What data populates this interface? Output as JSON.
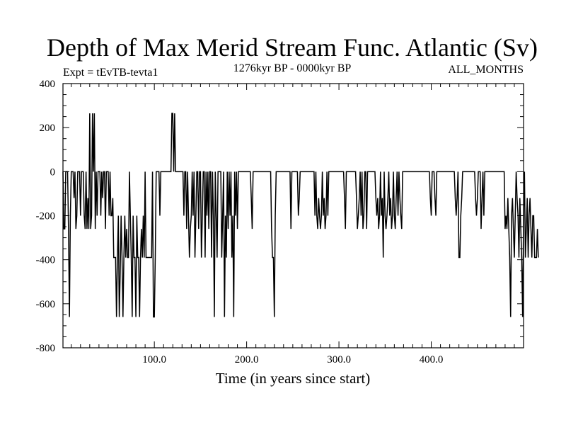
{
  "chart_data": {
    "type": "line",
    "title": "Depth of Max Merid Stream Func. Atlantic (Sv)",
    "subtitle_left": "Expt = tEvTB-tevta1",
    "subtitle_center": "1276kyr BP - 0000kyr BP",
    "subtitle_right": "ALL_MONTHS",
    "xlabel": "Time (in years since start)",
    "ylabel": "",
    "xlim": [
      1,
      500
    ],
    "ylim": [
      -800,
      400
    ],
    "x_ticks": [
      100,
      200,
      300,
      400
    ],
    "x_tick_labels": [
      "100.0",
      "200.0",
      "300.0",
      "400.0"
    ],
    "y_ticks": [
      -800,
      -600,
      -400,
      -200,
      0,
      200,
      400
    ],
    "y_tick_labels": [
      "-800",
      "-600",
      "-400",
      "-200",
      "0",
      "200",
      "400"
    ],
    "series": [
      {
        "name": "depth",
        "x_start": 1,
        "x_step": 1,
        "values": [
          0,
          -260,
          -260,
          0,
          0,
          0,
          -260,
          -660,
          -200,
          0,
          0,
          0,
          -120,
          0,
          -260,
          -200,
          0,
          0,
          0,
          -200,
          0,
          0,
          0,
          -200,
          -260,
          0,
          -260,
          -120,
          -260,
          265,
          -260,
          -200,
          265,
          0,
          265,
          -260,
          0,
          -200,
          0,
          0,
          0,
          -200,
          0,
          -120,
          0,
          0,
          -260,
          0,
          0,
          0,
          -200,
          0,
          -200,
          -200,
          -120,
          -390,
          -390,
          -390,
          -660,
          -390,
          -200,
          -660,
          -460,
          -200,
          -390,
          -660,
          -390,
          -200,
          -390,
          -260,
          -390,
          -390,
          0,
          -200,
          -390,
          -660,
          -200,
          -390,
          -390,
          -660,
          -200,
          -390,
          -390,
          -660,
          -390,
          -260,
          -390,
          -200,
          -390,
          0,
          -390,
          -390,
          -390,
          -390,
          -390,
          -390,
          -390,
          0,
          -660,
          -660,
          -390,
          0,
          0,
          0,
          0,
          -200,
          0,
          0,
          0,
          0,
          0,
          0,
          0,
          0,
          0,
          0,
          0,
          0,
          265,
          265,
          0,
          265,
          0,
          0,
          0,
          0,
          0,
          0,
          0,
          0,
          0,
          -200,
          0,
          0,
          -260,
          0,
          -200,
          -390,
          -260,
          -200,
          0,
          -200,
          0,
          -390,
          -200,
          0,
          0,
          -260,
          0,
          0,
          -390,
          -200,
          0,
          0,
          -390,
          0,
          -200,
          0,
          -260,
          0,
          0,
          -390,
          0,
          -200,
          -660,
          0,
          -200,
          -390,
          0,
          0,
          0,
          0,
          -390,
          -200,
          0,
          -660,
          -200,
          -390,
          0,
          -260,
          0,
          -200,
          0,
          -390,
          -200,
          -660,
          0,
          -200,
          0,
          -260,
          0,
          0,
          0,
          0,
          0,
          0,
          0,
          0,
          0,
          0,
          0,
          0,
          0,
          0,
          -120,
          -260,
          0,
          0,
          0,
          0,
          0,
          0,
          0,
          0,
          0,
          0,
          0,
          0,
          0,
          0,
          0,
          0,
          0,
          0,
          0,
          0,
          -260,
          -390,
          -390,
          -660,
          -200,
          0,
          0,
          0,
          0,
          0,
          0,
          0,
          0,
          0,
          0,
          0,
          0,
          0,
          0,
          0,
          0,
          -260,
          0,
          0,
          0,
          0,
          0,
          0,
          0,
          -200,
          -120,
          0,
          0,
          0,
          0,
          0,
          0,
          0,
          0,
          0,
          0,
          0,
          0,
          0,
          0,
          0,
          0,
          -200,
          0,
          -200,
          -260,
          -120,
          -200,
          -260,
          -200,
          0,
          -200,
          -120,
          -260,
          -200,
          0,
          -200,
          0,
          0,
          0,
          0,
          0,
          0,
          0,
          0,
          0,
          0,
          0,
          0,
          0,
          0,
          0,
          0,
          0,
          -120,
          -260,
          0,
          0,
          0,
          0,
          0,
          0,
          0,
          0,
          0,
          0,
          0,
          -120,
          -260,
          -200,
          -120,
          0,
          -200,
          0,
          -260,
          -200,
          0,
          0,
          -260,
          0,
          0,
          0,
          0,
          0,
          0,
          0,
          0,
          0,
          -120,
          -200,
          -120,
          -260,
          -200,
          0,
          -200,
          -120,
          -390,
          0,
          -200,
          -260,
          -200,
          -120,
          0,
          -200,
          -120,
          -260,
          -200,
          0,
          -200,
          -260,
          -120,
          0,
          -200,
          0,
          -120,
          -200,
          -260,
          0,
          0,
          0,
          0,
          0,
          0,
          0,
          0,
          0,
          0,
          0,
          0,
          0,
          0,
          0,
          0,
          0,
          0,
          0,
          0,
          0,
          0,
          0,
          0,
          0,
          0,
          0,
          0,
          0,
          0,
          -120,
          -200,
          0,
          0,
          0,
          -120,
          -200,
          0,
          0,
          0,
          0,
          0,
          0,
          0,
          0,
          0,
          0,
          0,
          0,
          0,
          0,
          0,
          0,
          0,
          0,
          0,
          0,
          -120,
          -200,
          -120,
          0,
          -390,
          -390,
          -200,
          -120,
          0,
          0,
          0,
          0,
          0,
          0,
          0,
          0,
          0,
          0,
          0,
          0,
          0,
          0,
          -120,
          -200,
          -120,
          0,
          0,
          0,
          -260,
          -120,
          0,
          -200,
          0,
          0,
          0,
          0,
          0,
          0,
          0,
          0,
          0,
          0,
          0,
          0,
          0,
          0,
          0,
          0,
          0,
          0,
          0,
          0,
          0,
          0,
          -260,
          -200,
          -260,
          -120,
          -260,
          -390,
          -660,
          -200,
          -120,
          -260,
          -390,
          -200,
          0,
          -120,
          -200,
          -390,
          -120,
          -260,
          -390,
          -660,
          -200,
          0,
          -390,
          -260,
          -120,
          -390,
          -200,
          -120,
          -260,
          -390,
          -200,
          -200,
          -390,
          -390,
          -390,
          -260,
          -390
        ]
      }
    ]
  }
}
